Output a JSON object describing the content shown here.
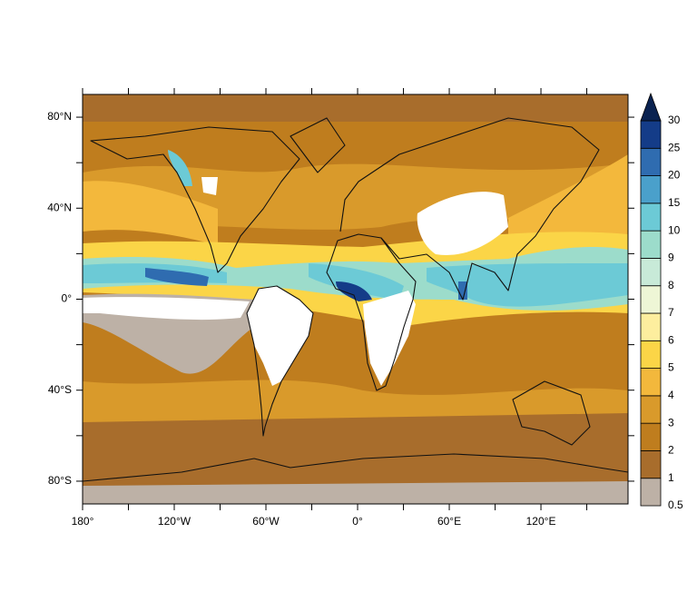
{
  "map": {
    "lon_range": [
      -180,
      177
    ],
    "lat_range": [
      -90,
      90
    ],
    "lon_ticks": [
      {
        "value": -180,
        "label": "180°"
      },
      {
        "value": -120,
        "label": "120°W"
      },
      {
        "value": -60,
        "label": "60°W"
      },
      {
        "value": 0,
        "label": "0°"
      },
      {
        "value": 60,
        "label": "60°E"
      },
      {
        "value": 120,
        "label": "120°E"
      }
    ],
    "lon_minor_ticks": [
      -150,
      -90,
      -30,
      30,
      90,
      150
    ],
    "lat_ticks": [
      {
        "value": 80,
        "label": "80°N"
      },
      {
        "value": 40,
        "label": "40°N"
      },
      {
        "value": 0,
        "label": "0°"
      },
      {
        "value": -40,
        "label": "40°S"
      },
      {
        "value": -80,
        "label": "80°S"
      }
    ],
    "lat_minor_ticks": [
      60,
      20,
      -20,
      -60
    ],
    "colorbar": {
      "levels": [
        0.5,
        1,
        2,
        3,
        4,
        5,
        6,
        7,
        8,
        9,
        10,
        15,
        20,
        25,
        30
      ],
      "colors": [
        "#bdb1a6",
        "#a86d2c",
        "#bf7d1e",
        "#d99a2b",
        "#f3b83c",
        "#fbd547",
        "#fdee9e",
        "#eef6d6",
        "#c8ead8",
        "#9cdccb",
        "#6ccad6",
        "#4aa0cb",
        "#2f6cb0",
        "#143c88"
      ],
      "over_color": "#0a2250"
    }
  }
}
